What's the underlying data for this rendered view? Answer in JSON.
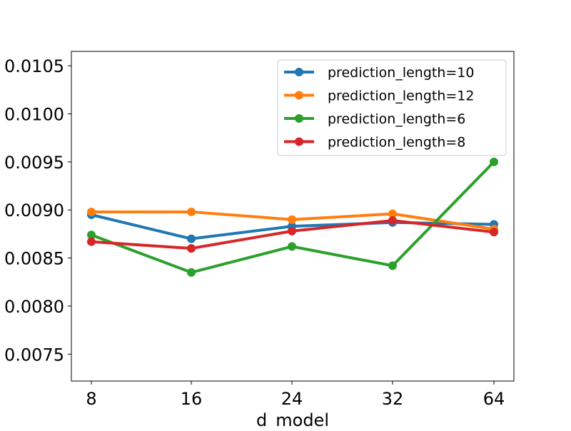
{
  "chart_data": {
    "type": "line",
    "title": "",
    "xlabel": "d_model",
    "ylabel": "",
    "categories": [
      "8",
      "16",
      "24",
      "32",
      "64"
    ],
    "ylim": [
      0.00722,
      0.01065
    ],
    "yticks": [
      "0.0075",
      "0.0080",
      "0.0085",
      "0.0090",
      "0.0095",
      "0.0100",
      "0.0105"
    ],
    "ytick_values": [
      0.0075,
      0.008,
      0.0085,
      0.009,
      0.0095,
      0.01,
      0.0105
    ],
    "legend_position": "top-right",
    "grid": false,
    "series": [
      {
        "name": "prediction_length=10",
        "color": "#1f77b4",
        "values": [
          0.00895,
          0.0087,
          0.00883,
          0.00887,
          0.00885
        ]
      },
      {
        "name": "prediction_length=12",
        "color": "#ff7f0e",
        "values": [
          0.00898,
          0.00898,
          0.0089,
          0.00896,
          0.0088
        ]
      },
      {
        "name": "prediction_length=6",
        "color": "#2ca02c",
        "values": [
          0.00874,
          0.00835,
          0.00862,
          0.00842,
          0.0095
        ]
      },
      {
        "name": "prediction_length=8",
        "color": "#d62728",
        "values": [
          0.00867,
          0.0086,
          0.00878,
          0.00889,
          0.00877
        ]
      }
    ]
  }
}
